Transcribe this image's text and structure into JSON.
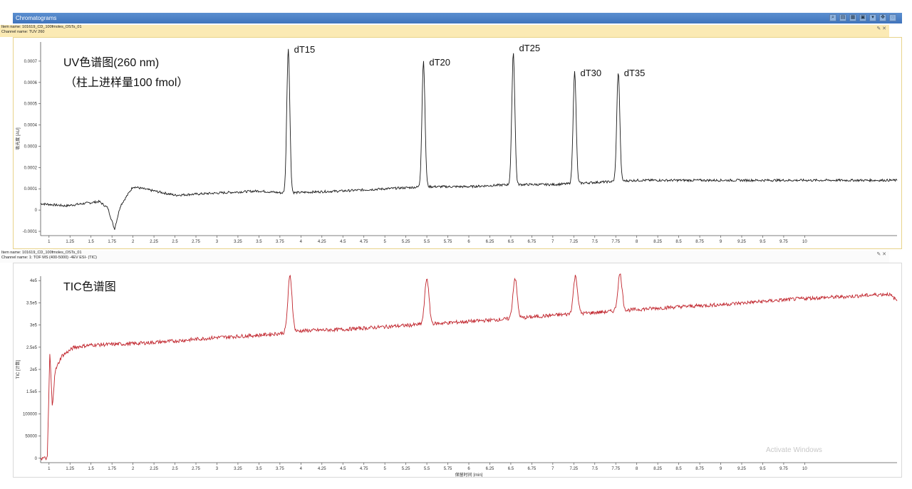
{
  "window": {
    "title": "Chromatograms"
  },
  "toolbar_icons": [
    "zoom-icon",
    "print-icon",
    "table-icon",
    "export-icon",
    "dropdown-icon",
    "move-icon",
    "settings-icon"
  ],
  "uv_panel": {
    "item_name": "Item name: 101619_CD_100fmoles_OSTs_01",
    "channel_name": "Channel name: TUV 260",
    "ylabel": "吸光度 [AU]",
    "annotation_line1": "UV色谱图(260 nm)",
    "annotation_line2": "（柱上进样量100 fmol）",
    "trace_color": "#1a1a1a"
  },
  "tic_panel": {
    "item_name": "Item name: 101619_CD_100fmoles_OSTs_01",
    "channel_name": "Channel name: 1: TOF MS (400-5000) -4EV ESI- (TIC)",
    "ylabel": "TIC [计数]",
    "annotation": "TIC色谱图",
    "xlabel": "保留时间 [min]",
    "trace_color": "#c0232b"
  },
  "watermark": {
    "line1": "Activate Windows"
  },
  "chart_data": [
    {
      "type": "line",
      "title": "UV色谱图(260 nm)",
      "ylabel": "吸光度 [AU]",
      "xlim": [
        0.9,
        11.1
      ],
      "ylim": [
        -0.00012,
        0.00079
      ],
      "yticks": [
        -0.0001,
        0,
        0.0001,
        0.0002,
        0.0003,
        0.0004,
        0.0005,
        0.0006,
        0.0007
      ],
      "ytick_labels": [
        "-0.0001",
        "0",
        "0.0001",
        "0.0002",
        "0.0003",
        "0.0004",
        "0.0005",
        "0.0006",
        "0.0007"
      ],
      "xticks": [
        1,
        1.25,
        1.5,
        1.75,
        2,
        2.25,
        2.5,
        2.75,
        3,
        3.25,
        3.5,
        3.75,
        4,
        4.25,
        4.5,
        4.75,
        5,
        5.25,
        5.5,
        5.75,
        6,
        6.25,
        6.5,
        6.75,
        7,
        7.25,
        7.5,
        7.75,
        8,
        8.25,
        8.5,
        8.75,
        9,
        9.25,
        9.5,
        9.75,
        10
      ],
      "xtick_labels": [
        "1",
        "1.25",
        "1.5",
        "1.75",
        "2",
        "2.25",
        "2.5",
        "2.75",
        "3",
        "3.25",
        "3.5",
        "3.75",
        "4",
        "4.25",
        "4.5",
        "4.75",
        "5",
        "5.25",
        "5.5",
        "5.75",
        "6",
        "6.25",
        "6.5",
        "6.75",
        "7",
        "7.25",
        "7.5",
        "7.75",
        "8",
        "8.25",
        "8.5",
        "8.75",
        "9",
        "9.25",
        "9.5",
        "9.75",
        "10"
      ],
      "baseline": [
        [
          0.9,
          3e-05
        ],
        [
          1.2,
          2e-05
        ],
        [
          1.6,
          4e-05
        ],
        [
          1.7,
          1e-05
        ],
        [
          1.78,
          -9e-05
        ],
        [
          1.85,
          2e-05
        ],
        [
          2.0,
          0.00011
        ],
        [
          2.5,
          7e-05
        ],
        [
          3.0,
          8e-05
        ],
        [
          3.5,
          9e-05
        ],
        [
          3.8,
          8e-05
        ],
        [
          4.5,
          9e-05
        ],
        [
          5.0,
          0.0001
        ],
        [
          5.5,
          0.00011
        ],
        [
          6.0,
          0.00011
        ],
        [
          6.5,
          0.00012
        ],
        [
          7.0,
          0.00012
        ],
        [
          7.5,
          0.00013
        ],
        [
          8.0,
          0.00014
        ],
        [
          9.0,
          0.00014
        ],
        [
          10.0,
          0.00014
        ],
        [
          11.1,
          0.00014
        ]
      ],
      "peaks": [
        {
          "label": "dT15",
          "x": 3.85,
          "y": 0.00076
        },
        {
          "label": "dT20",
          "x": 5.46,
          "y": 0.0007
        },
        {
          "label": "dT25",
          "x": 6.53,
          "y": 0.00074
        },
        {
          "label": "dT30",
          "x": 7.26,
          "y": 0.00065
        },
        {
          "label": "dT35",
          "x": 7.78,
          "y": 0.00065
        }
      ]
    },
    {
      "type": "line",
      "title": "TIC色谱图",
      "xlabel": "保留时间 [min]",
      "ylabel": "TIC [计数]",
      "xlim": [
        0.9,
        11.1
      ],
      "ylim": [
        -10000,
        410000
      ],
      "yticks": [
        0,
        50000,
        100000,
        150000,
        200000,
        250000,
        300000,
        350000,
        400000
      ],
      "ytick_labels": [
        "0",
        "50000",
        "100000",
        "1.5e5",
        "2e5",
        "2.5e5",
        "3e5",
        "3.5e5",
        "4e5"
      ],
      "xticks": [
        1,
        1.25,
        1.5,
        1.75,
        2,
        2.25,
        2.5,
        2.75,
        3,
        3.25,
        3.5,
        3.75,
        4,
        4.25,
        4.5,
        4.75,
        5,
        5.25,
        5.5,
        5.75,
        6,
        6.25,
        6.5,
        6.75,
        7,
        7.25,
        7.5,
        7.75,
        8,
        8.25,
        8.5,
        8.75,
        9,
        9.25,
        9.5,
        9.75,
        10
      ],
      "xtick_labels": [
        "1",
        "1.25",
        "1.5",
        "1.75",
        "2",
        "2.25",
        "2.5",
        "2.75",
        "3",
        "3.25",
        "3.5",
        "3.75",
        "4",
        "4.25",
        "4.5",
        "4.75",
        "5",
        "5.25",
        "5.5",
        "5.75",
        "6",
        "6.25",
        "6.5",
        "6.75",
        "7",
        "7.25",
        "7.5",
        "7.75",
        "8",
        "8.25",
        "8.5",
        "8.75",
        "9",
        "9.25",
        "9.5",
        "9.75",
        "10"
      ],
      "baseline": [
        [
          0.9,
          0
        ],
        [
          0.98,
          0
        ],
        [
          1.01,
          240000
        ],
        [
          1.04,
          110000
        ],
        [
          1.07,
          195000
        ],
        [
          1.15,
          230000
        ],
        [
          1.3,
          250000
        ],
        [
          1.5,
          255000
        ],
        [
          2.0,
          258000
        ],
        [
          2.5,
          264000
        ],
        [
          3.0,
          272000
        ],
        [
          3.5,
          277000
        ],
        [
          3.8,
          282000
        ],
        [
          4.0,
          287000
        ],
        [
          4.5,
          290000
        ],
        [
          5.0,
          296000
        ],
        [
          5.5,
          302000
        ],
        [
          6.0,
          308000
        ],
        [
          6.5,
          314000
        ],
        [
          7.0,
          322000
        ],
        [
          7.5,
          328000
        ],
        [
          8.0,
          335000
        ],
        [
          8.5,
          341000
        ],
        [
          9.0,
          346000
        ],
        [
          9.5,
          353000
        ],
        [
          10.0,
          360000
        ],
        [
          10.5,
          364000
        ],
        [
          11.0,
          370000
        ],
        [
          11.1,
          355000
        ]
      ],
      "peaks": [
        {
          "x": 3.87,
          "y": 410000
        },
        {
          "x": 5.5,
          "y": 405000
        },
        {
          "x": 6.55,
          "y": 405000
        },
        {
          "x": 7.27,
          "y": 410000
        },
        {
          "x": 7.8,
          "y": 415000
        }
      ]
    }
  ]
}
